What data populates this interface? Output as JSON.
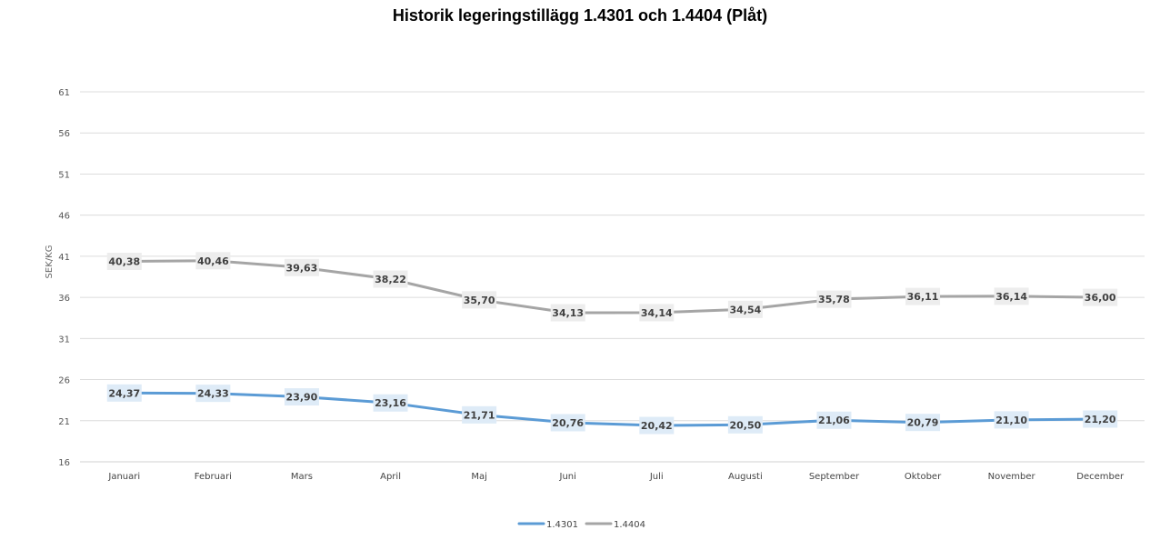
{
  "chart_data": {
    "type": "line",
    "title": "Historik legeringstillägg 1.4301 och 1.4404 (Plåt)",
    "xlabel": "",
    "ylabel": "SEK/KG",
    "ylim": [
      16,
      61
    ],
    "yticks": [
      16,
      21,
      26,
      31,
      36,
      41,
      46,
      51,
      56,
      61
    ],
    "grid": true,
    "legend_position": "bottom",
    "categories": [
      "Januari",
      "Februari",
      "Mars",
      "April",
      "Maj",
      "Juni",
      "Juli",
      "Augusti",
      "September",
      "Oktober",
      "November",
      "December"
    ],
    "series": [
      {
        "name": "1.4301",
        "color": "#5B9BD5",
        "label_bg": "#DEEBF7",
        "values": [
          24.37,
          24.33,
          23.9,
          23.16,
          21.71,
          20.76,
          20.42,
          20.5,
          21.06,
          20.79,
          21.1,
          21.2
        ],
        "labels": [
          "24,37",
          "24,33",
          "23,90",
          "23,16",
          "21,71",
          "20,76",
          "20,42",
          "20,50",
          "21,06",
          "20,79",
          "21,10",
          "21,20"
        ]
      },
      {
        "name": "1.4404",
        "color": "#A5A5A5",
        "label_bg": "#EDEDED",
        "values": [
          40.38,
          40.46,
          39.63,
          38.22,
          35.7,
          34.13,
          34.14,
          34.54,
          35.78,
          36.11,
          36.14,
          36.0
        ],
        "labels": [
          "40,38",
          "40,46",
          "39,63",
          "38,22",
          "35,70",
          "34,13",
          "34,14",
          "34,54",
          "35,78",
          "36,11",
          "36,14",
          "36,00"
        ]
      }
    ]
  }
}
